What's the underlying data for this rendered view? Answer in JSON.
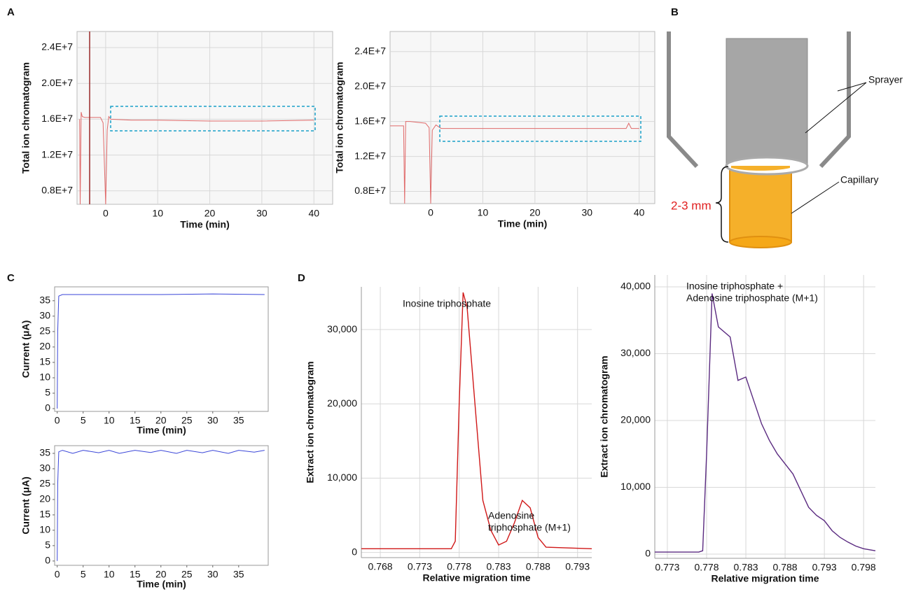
{
  "panel_labels": [
    "A",
    "B",
    "C",
    "D"
  ],
  "diagram": {
    "sprayer": "Sprayer",
    "capillary": "Capillary",
    "distance": "2-3 mm"
  },
  "chart_data": [
    {
      "type": "line",
      "x_label": "Time (min)",
      "y_label": "Total ion chromatogram",
      "xlim": [
        -5.5,
        43.6
      ],
      "ylim": [
        6500000,
        25800000
      ],
      "xticks": [
        0,
        10,
        20,
        30,
        40
      ],
      "yticks": [
        {
          "value": 8000000,
          "label": "0.8E+7"
        },
        {
          "value": 12000000,
          "label": "1.2E+7"
        },
        {
          "value": 16000000,
          "label": "1.6E+7"
        },
        {
          "value": 20000000,
          "label": "2.0E+7"
        },
        {
          "value": 24000000,
          "label": "2.4E+7"
        }
      ],
      "grid": true,
      "color": "#e06a6a",
      "x": [
        -5,
        -4.9,
        -4.7,
        -4.5,
        -4,
        -1,
        -0.5,
        0,
        0.3,
        0.6,
        1,
        5,
        10,
        20,
        30,
        40
      ],
      "values": [
        16000000,
        6500000,
        16800000,
        16300000,
        16200000,
        16200000,
        15600000,
        6500000,
        14800000,
        16300000,
        16000000,
        15900000,
        15900000,
        15800000,
        15800000,
        15900000
      ]
    },
    {
      "type": "line",
      "x_label": "Time (min)",
      "y_label": "Total ion chromatogram",
      "xlim": [
        -7.8,
        43
      ],
      "ylim": [
        6600000,
        26300000
      ],
      "xticks": [
        0,
        10,
        20,
        30,
        40
      ],
      "yticks": [
        {
          "value": 8000000,
          "label": "0.8E+7"
        },
        {
          "value": 12000000,
          "label": "1.2E+7"
        },
        {
          "value": 16000000,
          "label": "1.6E+7"
        },
        {
          "value": 20000000,
          "label": "2.0E+7"
        },
        {
          "value": 24000000,
          "label": "2.4E+7"
        }
      ],
      "grid": true,
      "color": "#e06a6a",
      "x": [
        -7.8,
        -5.2,
        -5,
        -4.8,
        -4,
        -1,
        -0.3,
        0,
        0.3,
        1,
        2,
        5,
        10,
        20,
        30,
        37.5,
        38,
        38.5,
        40
      ],
      "values": [
        15500000,
        15500000,
        6600000,
        16000000,
        16000000,
        15800000,
        15300000,
        6600000,
        15000000,
        15600000,
        15200000,
        15200000,
        15200000,
        15200000,
        15200000,
        15200000,
        15800000,
        15200000,
        15200000
      ]
    },
    {
      "type": "line",
      "x_label": "Time (min)",
      "y_label": "Current (μA)",
      "xlim": [
        -0.5,
        40.7
      ],
      "ylim": [
        -0.9,
        39.5
      ],
      "xticks": [
        0,
        5,
        10,
        15,
        20,
        25,
        30,
        35
      ],
      "yticks": [
        0,
        5,
        10,
        15,
        20,
        25,
        30,
        35
      ],
      "grid": false,
      "color": "#3a46d8",
      "x": [
        0,
        0.1,
        0.3,
        1,
        10,
        20,
        30,
        40
      ],
      "values": [
        0,
        25,
        36.5,
        37,
        37,
        37,
        37.2,
        37
      ]
    },
    {
      "type": "line",
      "x_label": "Time (min)",
      "y_label": "Current (μA)",
      "xlim": [
        -0.5,
        40.7
      ],
      "ylim": [
        -1.4,
        37.5
      ],
      "xticks": [
        0,
        5,
        10,
        15,
        20,
        25,
        30,
        35
      ],
      "yticks": [
        0,
        5,
        10,
        15,
        20,
        25,
        30,
        35
      ],
      "grid": false,
      "color": "#3a46d8",
      "x": [
        0,
        0.1,
        0.3,
        1,
        3,
        5,
        8,
        10,
        12,
        15,
        18,
        20,
        23,
        25,
        28,
        30,
        33,
        35,
        38,
        40
      ],
      "values": [
        0,
        25,
        35.5,
        36,
        35,
        36,
        35.2,
        36,
        35,
        36,
        35.3,
        36,
        35,
        36,
        35.2,
        36,
        35,
        36,
        35.4,
        36
      ]
    },
    {
      "type": "line",
      "x_label": "Relative migration time",
      "y_label": "Extract ion chromatogram",
      "xlim": [
        0.7656,
        0.7948
      ],
      "ylim": [
        -700,
        35750
      ],
      "xticks": [
        0.768,
        0.773,
        0.778,
        0.783,
        0.788,
        0.793
      ],
      "yticks": [
        0,
        {
          "value": 10000,
          "label": "10,000"
        },
        {
          "value": 20000,
          "label": "20,000"
        },
        {
          "value": 30000,
          "label": "30,000"
        }
      ],
      "grid": true,
      "color": "#d01818",
      "annotations": [
        [
          "Inosine triphosphate"
        ],
        [
          "Adenosine",
          "triphosphate (M+1)"
        ]
      ],
      "x": [
        0.7656,
        0.777,
        0.7775,
        0.778,
        0.7785,
        0.779,
        0.78,
        0.781,
        0.782,
        0.783,
        0.784,
        0.785,
        0.786,
        0.787,
        0.788,
        0.789,
        0.7948
      ],
      "values": [
        500,
        500,
        1500,
        20000,
        35000,
        33000,
        20000,
        7000,
        3000,
        1000,
        1500,
        4000,
        7000,
        6000,
        2000,
        700,
        500
      ]
    },
    {
      "type": "line",
      "x_label": "Relative migration time",
      "y_label": "Extract ion chromatogram",
      "xlim": [
        0.7714,
        0.7995
      ],
      "ylim": [
        -630,
        41780
      ],
      "xticks": [
        0.773,
        0.778,
        0.783,
        0.788,
        0.793,
        0.798
      ],
      "yticks": [
        0,
        {
          "value": 10000,
          "label": "10,000"
        },
        {
          "value": 20000,
          "label": "20,000"
        },
        {
          "value": 30000,
          "label": "30,000"
        },
        {
          "value": 40000,
          "label": "40,000"
        }
      ],
      "grid": true,
      "color": "#5a2a80",
      "annotations": [
        [
          "Inosine triphosphate +",
          "Adenosine triphosphate (M+1)"
        ]
      ],
      "x": [
        0.7714,
        0.777,
        0.7775,
        0.778,
        0.7787,
        0.7795,
        0.781,
        0.782,
        0.783,
        0.784,
        0.785,
        0.786,
        0.787,
        0.788,
        0.789,
        0.79,
        0.791,
        0.792,
        0.793,
        0.794,
        0.795,
        0.796,
        0.797,
        0.798,
        0.7995
      ],
      "values": [
        300,
        300,
        500,
        15000,
        39000,
        34000,
        32500,
        26000,
        26500,
        23000,
        19500,
        17000,
        15000,
        13500,
        12000,
        9500,
        7000,
        5800,
        5000,
        3500,
        2500,
        1800,
        1200,
        800,
        500
      ]
    }
  ]
}
